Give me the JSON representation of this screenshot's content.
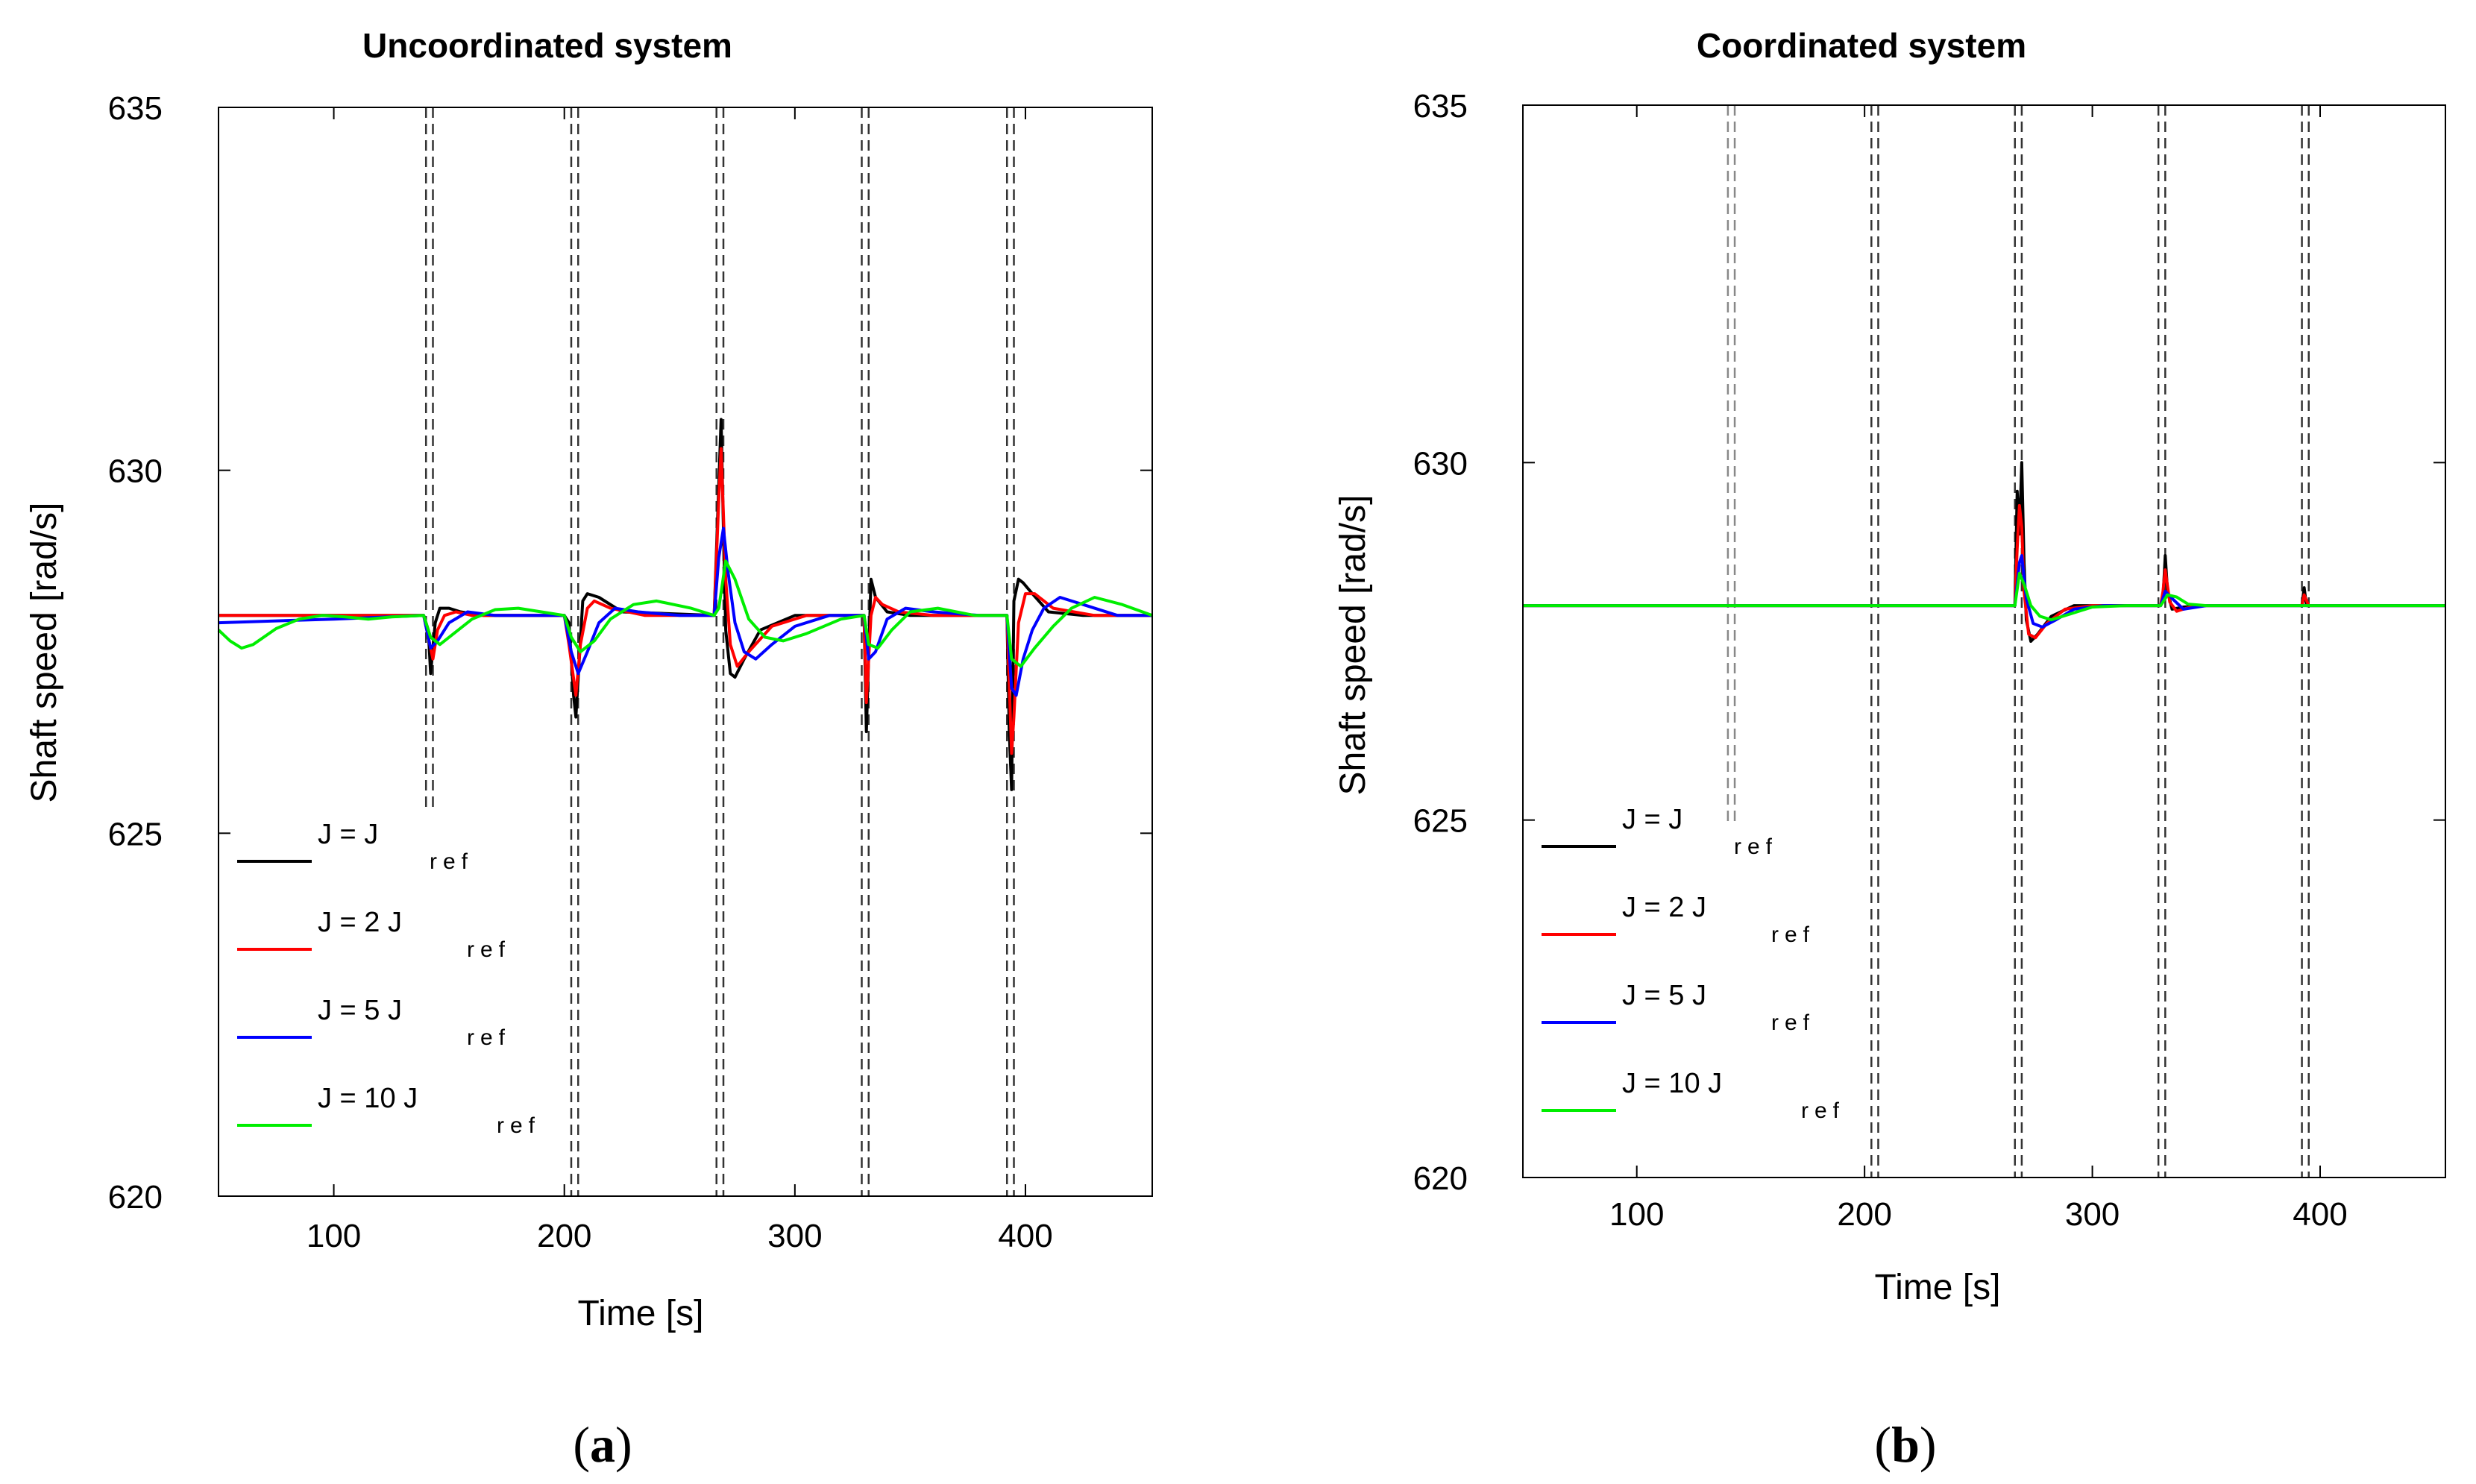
{
  "chart_data": [
    {
      "type": "line",
      "panel_label": "a",
      "title": "Uncoordinated system",
      "xlabel": "Time [s]",
      "ylabel": "Shaft speed [rad/s]",
      "xlim": [
        50,
        455
      ],
      "ylim": [
        620,
        635
      ],
      "xticks": [
        100,
        200,
        300,
        400
      ],
      "yticks": [
        620,
        625,
        630,
        635
      ],
      "event_times": [
        140,
        143,
        203,
        206,
        266,
        269,
        329,
        332,
        392,
        395
      ],
      "legend_position": "lower-left",
      "series": [
        {
          "name": "J = J",
          "sub": "ref",
          "color": "#000000",
          "x": [
            50,
            139,
            141,
            142,
            144,
            146,
            150,
            155,
            165,
            200,
            202,
            204,
            205,
            208,
            210,
            215,
            225,
            265,
            267,
            268,
            269,
            270,
            272,
            274,
            278,
            285,
            300,
            330,
            331,
            333,
            335,
            340,
            350,
            392,
            393,
            394,
            395,
            397,
            399,
            403,
            410,
            425,
            455
          ],
          "y": [
            628,
            628,
            627.8,
            627.2,
            627.9,
            628.1,
            628.1,
            628.05,
            628,
            628,
            627.9,
            626.9,
            626.6,
            628.2,
            628.3,
            628.25,
            628.05,
            628,
            629.8,
            630.7,
            629.2,
            627.8,
            627.2,
            627.15,
            627.4,
            627.8,
            628,
            628,
            626.4,
            628.5,
            628.25,
            628.05,
            628,
            628,
            626.4,
            625.6,
            628.2,
            628.5,
            628.45,
            628.3,
            628.05,
            628,
            628
          ]
        },
        {
          "name": "J = 2 J",
          "sub": "ref",
          "color": "#ff0000",
          "x": [
            50,
            139,
            141,
            143,
            145,
            148,
            153,
            160,
            175,
            200,
            202,
            205,
            207,
            210,
            213,
            220,
            235,
            265,
            267,
            268,
            270,
            272,
            275,
            280,
            290,
            305,
            330,
            331,
            333,
            335,
            338,
            345,
            360,
            392,
            394,
            395,
            397,
            400,
            404,
            412,
            430,
            455
          ],
          "y": [
            628,
            628,
            627.7,
            627.4,
            627.8,
            628,
            628.05,
            628,
            628,
            628,
            627.6,
            626.9,
            627.6,
            628.1,
            628.2,
            628.1,
            628,
            628,
            629.6,
            630.3,
            628.5,
            627.6,
            627.3,
            627.5,
            627.85,
            628,
            628,
            626.8,
            628,
            628.25,
            628.15,
            628.05,
            628,
            628,
            626.1,
            626.6,
            627.9,
            628.3,
            628.3,
            628.1,
            628,
            628
          ]
        },
        {
          "name": "J = 5 J",
          "sub": "ref",
          "color": "#0000ff",
          "x": [
            50,
            100,
            139,
            142,
            145,
            150,
            158,
            170,
            190,
            200,
            203,
            206,
            210,
            215,
            222,
            232,
            250,
            265,
            267,
            269,
            271,
            274,
            278,
            283,
            290,
            300,
            315,
            330,
            332,
            335,
            340,
            348,
            360,
            380,
            392,
            394,
            396,
            399,
            403,
            408,
            415,
            425,
            440,
            455
          ],
          "y": [
            627.9,
            627.95,
            628,
            627.55,
            627.65,
            627.9,
            628.05,
            628,
            628,
            628,
            627.5,
            627.2,
            627.5,
            627.9,
            628.1,
            628.05,
            628,
            628,
            628.8,
            629.2,
            628.6,
            627.9,
            627.5,
            627.4,
            627.6,
            627.85,
            628,
            628,
            627.4,
            627.5,
            627.95,
            628.1,
            628.05,
            628,
            628,
            627,
            626.9,
            627.4,
            627.8,
            628.1,
            628.25,
            628.15,
            628,
            628
          ]
        },
        {
          "name": "J = 10 J",
          "sub": "ref",
          "color": "#00ee00",
          "x": [
            50,
            55,
            60,
            65,
            75,
            85,
            95,
            105,
            115,
            125,
            139,
            142,
            146,
            152,
            160,
            170,
            180,
            190,
            200,
            203,
            207,
            213,
            220,
            230,
            240,
            255,
            265,
            267,
            270,
            274,
            280,
            287,
            295,
            305,
            320,
            330,
            332,
            336,
            342,
            350,
            362,
            378,
            392,
            394,
            398,
            404,
            412,
            420,
            430,
            442,
            455
          ],
          "y": [
            627.8,
            627.65,
            627.55,
            627.6,
            627.82,
            627.95,
            628,
            627.98,
            627.95,
            627.98,
            628,
            627.7,
            627.6,
            627.75,
            627.95,
            628.08,
            628.1,
            628.05,
            628,
            627.7,
            627.5,
            627.65,
            627.95,
            628.15,
            628.2,
            628.1,
            628,
            628.1,
            628.75,
            628.5,
            627.95,
            627.7,
            627.65,
            627.75,
            627.95,
            628,
            627.6,
            627.55,
            627.8,
            628.05,
            628.1,
            628,
            628,
            627.4,
            627.3,
            627.55,
            627.85,
            628.1,
            628.25,
            628.15,
            628
          ]
        }
      ]
    },
    {
      "type": "line",
      "panel_label": "b",
      "title": "Coordinated system",
      "xlabel": "Time [s]",
      "ylabel": "Shaft speed [rad/s]",
      "xlim": [
        50,
        455
      ],
      "ylim": [
        620,
        635
      ],
      "xticks": [
        100,
        200,
        300,
        400
      ],
      "yticks": [
        620,
        625,
        630,
        635
      ],
      "event_times": [
        140,
        143,
        203,
        206,
        266,
        269,
        329,
        332,
        392,
        395
      ],
      "legend_position": "lower-left",
      "series": [
        {
          "name": "J = J",
          "sub": "ref",
          "color": "#000000",
          "x": [
            50,
            266,
            267,
            268,
            269,
            270,
            271,
            273,
            276,
            282,
            292,
            305,
            330,
            331,
            332,
            333,
            335,
            340,
            350,
            392,
            393,
            394,
            396,
            455
          ],
          "y": [
            628,
            628,
            629.6,
            629,
            630,
            628.6,
            627.8,
            627.5,
            627.6,
            627.85,
            628,
            628,
            628,
            628.1,
            628.7,
            628.2,
            627.95,
            627.98,
            628,
            628,
            628.25,
            628,
            628,
            628
          ]
        },
        {
          "name": "J = 2 J",
          "sub": "ref",
          "color": "#ff0000",
          "x": [
            50,
            266,
            267,
            268,
            269,
            270,
            272,
            275,
            280,
            288,
            300,
            330,
            331,
            332,
            334,
            337,
            345,
            392,
            393,
            395,
            455
          ],
          "y": [
            628,
            628,
            628.8,
            629.4,
            629.1,
            628.2,
            627.6,
            627.55,
            627.75,
            627.95,
            628,
            628,
            628.2,
            628.5,
            628.05,
            627.92,
            628,
            628,
            628.15,
            628,
            628
          ]
        },
        {
          "name": "J = 5 J",
          "sub": "ref",
          "color": "#0000ff",
          "x": [
            50,
            266,
            268,
            269,
            271,
            274,
            278,
            284,
            292,
            305,
            330,
            332,
            335,
            340,
            350,
            455
          ],
          "y": [
            628,
            628,
            628.6,
            628.7,
            628.1,
            627.75,
            627.7,
            627.8,
            627.95,
            628,
            628,
            628.2,
            628.1,
            627.95,
            628,
            628
          ]
        },
        {
          "name": "J = 10 J",
          "sub": "ref",
          "color": "#00ee00",
          "x": [
            50,
            266,
            268,
            270,
            273,
            277,
            282,
            290,
            300,
            315,
            330,
            333,
            337,
            342,
            350,
            455
          ],
          "y": [
            628,
            628,
            628.45,
            628.3,
            628,
            627.85,
            627.8,
            627.88,
            627.98,
            628,
            628,
            628.15,
            628.12,
            628.02,
            628,
            628
          ]
        }
      ]
    }
  ]
}
